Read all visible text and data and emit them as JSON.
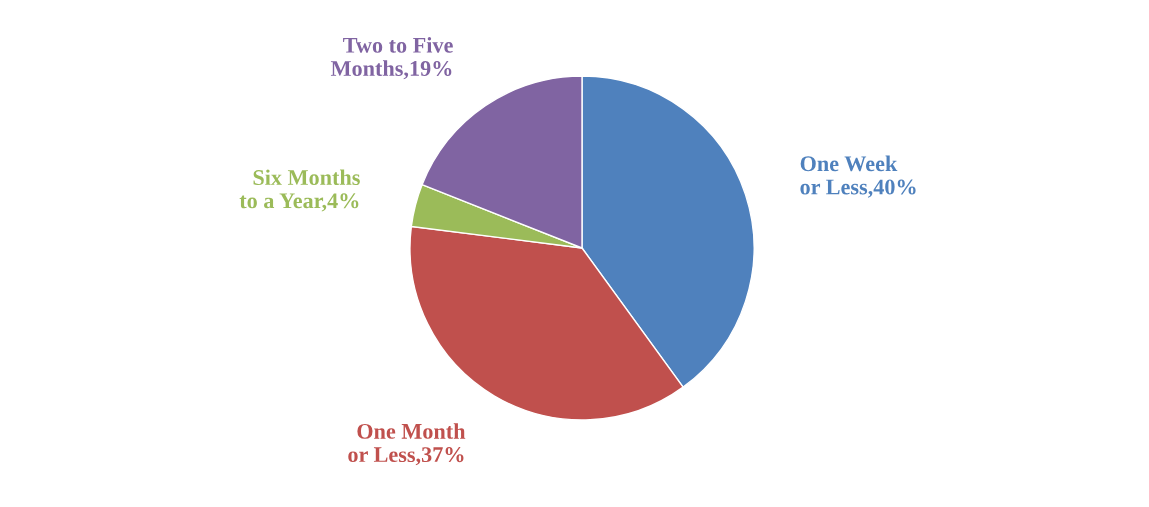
{
  "chart_data": {
    "type": "pie",
    "categories": [
      "One Week or Less",
      "One Month or Less",
      "Six Months to a Year",
      "Two to Five Months"
    ],
    "values": [
      40,
      37,
      4,
      19
    ],
    "value_labels": [
      "40%",
      "37%",
      "4%",
      "19%"
    ],
    "colors": [
      "#4f81bd",
      "#c0504d",
      "#9bbb59",
      "#8064a2"
    ],
    "legend": false
  }
}
